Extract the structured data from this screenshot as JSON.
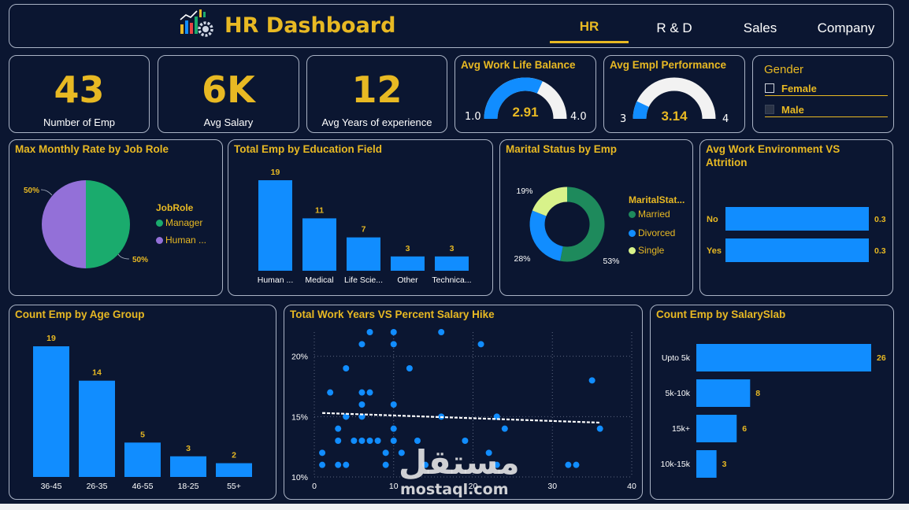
{
  "header": {
    "title": "HR Dashboard",
    "tabs": [
      {
        "label": "HR",
        "active": true
      },
      {
        "label": "R & D",
        "active": false
      },
      {
        "label": "Sales",
        "active": false
      },
      {
        "label": "Company",
        "active": false
      }
    ]
  },
  "kpis": [
    {
      "value": "43",
      "label": "Number of Emp"
    },
    {
      "value": "6K",
      "label": "Avg Salary"
    },
    {
      "value": "12",
      "label": "Avg Years of experience"
    }
  ],
  "gauges": [
    {
      "title": "Avg Work Life Balance",
      "value": "2.91",
      "min": "1.0",
      "max": "4.0",
      "num": 2.91,
      "lo": 1.0,
      "hi": 4.0
    },
    {
      "title": "Avg Empl Performance",
      "value": "3.14",
      "min": "3",
      "max": "4",
      "num": 3.14,
      "lo": 3,
      "hi": 4
    }
  ],
  "gender_slicer": {
    "title": "Gender",
    "options": [
      "Female",
      "Male"
    ]
  },
  "watermark": {
    "arabic": "مستقل",
    "latin": "mostaql.com"
  },
  "colors": {
    "accent": "#e8b923",
    "bar": "#118dff",
    "green": "#1aab6d",
    "purple": "#9370d8",
    "dark_green": "#1e8a5c",
    "lime": "#d8f28a",
    "background": "#0b1631"
  },
  "chart_data": [
    {
      "id": "monthly-rate",
      "type": "pie",
      "title": "Max Monthly Rate by Job Role",
      "legend_title": "JobRole",
      "categories": [
        "Manager",
        "Human ..."
      ],
      "values": [
        50,
        50
      ],
      "labels": [
        "50%",
        "50%"
      ]
    },
    {
      "id": "education",
      "type": "bar",
      "title": "Total Emp by Education Field",
      "categories": [
        "Human ...",
        "Medical",
        "Life Scie...",
        "Other",
        "Technica..."
      ],
      "values": [
        19,
        11,
        7,
        3,
        3
      ]
    },
    {
      "id": "marital",
      "type": "pie",
      "title": "Marital Status by Emp",
      "legend_title": "MaritalStat...",
      "categories": [
        "Married",
        "Divorced",
        "Single"
      ],
      "values": [
        53,
        28,
        19
      ],
      "labels": [
        "53%",
        "28%",
        "19%"
      ]
    },
    {
      "id": "environment",
      "type": "bar",
      "orientation": "horizontal",
      "title": "Avg Work Environment VS Attrition",
      "categories": [
        "No",
        "Yes"
      ],
      "values": [
        0.3,
        0.3
      ],
      "labels": [
        "0.3",
        "0.3"
      ]
    },
    {
      "id": "age",
      "type": "bar",
      "title": "Count Emp by Age Group",
      "categories": [
        "36-45",
        "26-35",
        "46-55",
        "18-25",
        "55+"
      ],
      "values": [
        19,
        14,
        5,
        3,
        2
      ]
    },
    {
      "id": "scatter",
      "type": "scatter",
      "title": "Total Work Years VS Percent Salary Hike",
      "xlim": [
        0,
        40
      ],
      "ylim": [
        10,
        22
      ],
      "xticks": [
        "0",
        "10",
        "20",
        "30",
        "40"
      ],
      "yticks": [
        "10%",
        "15%",
        "20%"
      ],
      "trend": [
        [
          1,
          15.3
        ],
        [
          36,
          14.5
        ]
      ],
      "points": [
        [
          1,
          11
        ],
        [
          1,
          12
        ],
        [
          2,
          17
        ],
        [
          3,
          13
        ],
        [
          3,
          11
        ],
        [
          3,
          14
        ],
        [
          4,
          15
        ],
        [
          4,
          15
        ],
        [
          4,
          19
        ],
        [
          4,
          11
        ],
        [
          5,
          13
        ],
        [
          6,
          15
        ],
        [
          6,
          17
        ],
        [
          6,
          16
        ],
        [
          6,
          21
        ],
        [
          6,
          13
        ],
        [
          7,
          17
        ],
        [
          7,
          13
        ],
        [
          7,
          22
        ],
        [
          8,
          13
        ],
        [
          9,
          12
        ],
        [
          9,
          11
        ],
        [
          10,
          21
        ],
        [
          10,
          16
        ],
        [
          10,
          13
        ],
        [
          10,
          22
        ],
        [
          10,
          14
        ],
        [
          11,
          12
        ],
        [
          12,
          19
        ],
        [
          13,
          13
        ],
        [
          14,
          11
        ],
        [
          16,
          22
        ],
        [
          16,
          15
        ],
        [
          19,
          13
        ],
        [
          21,
          21
        ],
        [
          22,
          12
        ],
        [
          23,
          11
        ],
        [
          23,
          15
        ],
        [
          24,
          14
        ],
        [
          32,
          11
        ],
        [
          33,
          11
        ],
        [
          35,
          18
        ],
        [
          36,
          14
        ]
      ]
    },
    {
      "id": "salary",
      "type": "bar",
      "orientation": "horizontal",
      "title": "Count Emp by SalarySlab",
      "categories": [
        "Upto 5k",
        "5k-10k",
        "15k+",
        "10k-15k"
      ],
      "values": [
        26,
        8,
        6,
        3
      ]
    }
  ]
}
